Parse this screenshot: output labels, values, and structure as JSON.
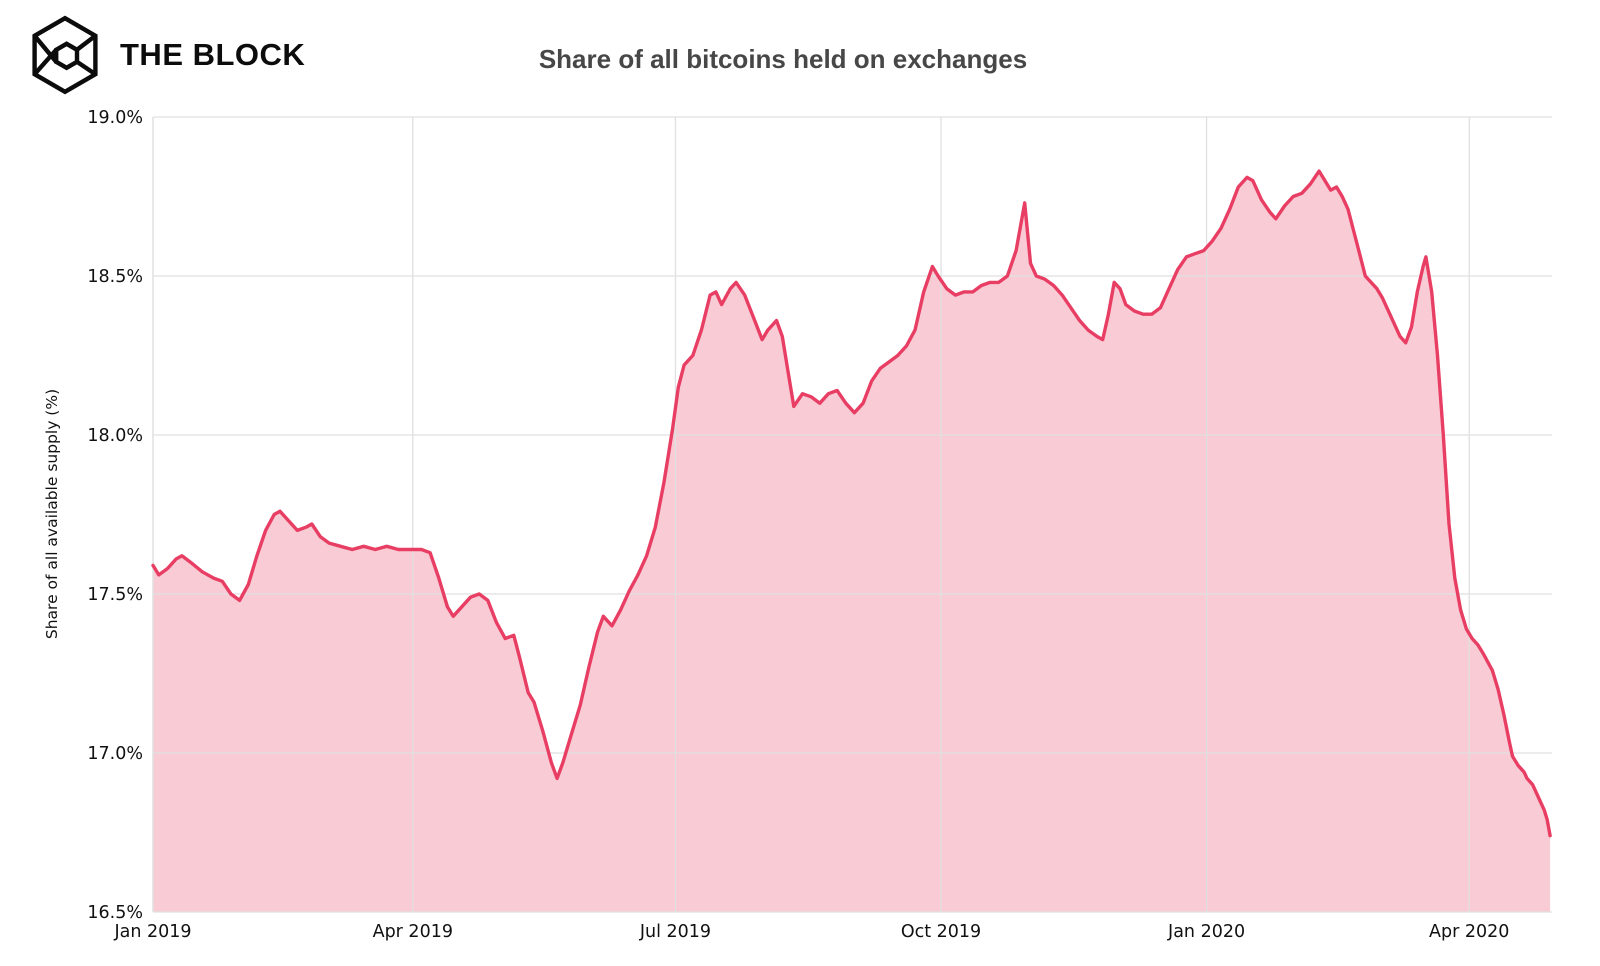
{
  "header": {
    "logo_text": "THE BLOCK"
  },
  "chart_data": {
    "type": "area",
    "title": "Share of all bitcoins held on exchanges",
    "ylabel": "Share of all available supply (%)",
    "xlabel": "",
    "ylim": [
      16.5,
      19.0
    ],
    "grid": true,
    "legend_position": "none",
    "colors": {
      "line": "#e83e64",
      "fill": "rgba(232,62,100,0.27)",
      "grid": "#e0e0e0",
      "axis_text": "#111111",
      "title": "#474747"
    },
    "y_ticks": [
      {
        "value": 19.0,
        "label": "19.0%"
      },
      {
        "value": 18.5,
        "label": "18.5%"
      },
      {
        "value": 18.0,
        "label": "18.0%"
      },
      {
        "value": 17.5,
        "label": "17.5%"
      },
      {
        "value": 17.0,
        "label": "17.0%"
      },
      {
        "value": 16.5,
        "label": "16.5%"
      }
    ],
    "x_ticks": [
      {
        "date": "2019-01-01",
        "label": "Jan 2019"
      },
      {
        "date": "2019-04-01",
        "label": "Apr 2019"
      },
      {
        "date": "2019-07-01",
        "label": "Jul 2019"
      },
      {
        "date": "2019-10-01",
        "label": "Oct 2019"
      },
      {
        "date": "2020-01-01",
        "label": "Jan 2020"
      },
      {
        "date": "2020-04-01",
        "label": "Apr 2020"
      }
    ],
    "series": [
      {
        "name": "Share of all bitcoins held on exchanges",
        "points": [
          [
            "2019-01-01",
            17.59
          ],
          [
            "2019-01-03",
            17.56
          ],
          [
            "2019-01-06",
            17.58
          ],
          [
            "2019-01-09",
            17.61
          ],
          [
            "2019-01-11",
            17.62
          ],
          [
            "2019-01-14",
            17.6
          ],
          [
            "2019-01-18",
            17.57
          ],
          [
            "2019-01-22",
            17.55
          ],
          [
            "2019-01-25",
            17.54
          ],
          [
            "2019-01-28",
            17.5
          ],
          [
            "2019-01-31",
            17.48
          ],
          [
            "2019-02-03",
            17.53
          ],
          [
            "2019-02-06",
            17.62
          ],
          [
            "2019-02-09",
            17.7
          ],
          [
            "2019-02-12",
            17.75
          ],
          [
            "2019-02-14",
            17.76
          ],
          [
            "2019-02-17",
            17.73
          ],
          [
            "2019-02-20",
            17.7
          ],
          [
            "2019-02-23",
            17.71
          ],
          [
            "2019-02-25",
            17.72
          ],
          [
            "2019-02-28",
            17.68
          ],
          [
            "2019-03-03",
            17.66
          ],
          [
            "2019-03-07",
            17.65
          ],
          [
            "2019-03-11",
            17.64
          ],
          [
            "2019-03-15",
            17.65
          ],
          [
            "2019-03-19",
            17.64
          ],
          [
            "2019-03-23",
            17.65
          ],
          [
            "2019-03-27",
            17.64
          ],
          [
            "2019-03-31",
            17.64
          ],
          [
            "2019-04-04",
            17.64
          ],
          [
            "2019-04-07",
            17.63
          ],
          [
            "2019-04-10",
            17.55
          ],
          [
            "2019-04-13",
            17.46
          ],
          [
            "2019-04-15",
            17.43
          ],
          [
            "2019-04-18",
            17.46
          ],
          [
            "2019-04-21",
            17.49
          ],
          [
            "2019-04-24",
            17.5
          ],
          [
            "2019-04-27",
            17.48
          ],
          [
            "2019-04-30",
            17.41
          ],
          [
            "2019-05-03",
            17.36
          ],
          [
            "2019-05-06",
            17.37
          ],
          [
            "2019-05-08",
            17.3
          ],
          [
            "2019-05-11",
            17.19
          ],
          [
            "2019-05-13",
            17.16
          ],
          [
            "2019-05-16",
            17.07
          ],
          [
            "2019-05-19",
            16.97
          ],
          [
            "2019-05-21",
            16.92
          ],
          [
            "2019-05-23",
            16.97
          ],
          [
            "2019-05-26",
            17.06
          ],
          [
            "2019-05-29",
            17.15
          ],
          [
            "2019-06-01",
            17.27
          ],
          [
            "2019-06-04",
            17.38
          ],
          [
            "2019-06-06",
            17.43
          ],
          [
            "2019-06-09",
            17.4
          ],
          [
            "2019-06-12",
            17.45
          ],
          [
            "2019-06-15",
            17.51
          ],
          [
            "2019-06-18",
            17.56
          ],
          [
            "2019-06-21",
            17.62
          ],
          [
            "2019-06-24",
            17.71
          ],
          [
            "2019-06-27",
            17.85
          ],
          [
            "2019-06-30",
            18.02
          ],
          [
            "2019-07-02",
            18.15
          ],
          [
            "2019-07-04",
            18.22
          ],
          [
            "2019-07-07",
            18.25
          ],
          [
            "2019-07-10",
            18.33
          ],
          [
            "2019-07-13",
            18.44
          ],
          [
            "2019-07-15",
            18.45
          ],
          [
            "2019-07-17",
            18.41
          ],
          [
            "2019-07-20",
            18.46
          ],
          [
            "2019-07-22",
            18.48
          ],
          [
            "2019-07-25",
            18.44
          ],
          [
            "2019-07-28",
            18.37
          ],
          [
            "2019-07-31",
            18.3
          ],
          [
            "2019-08-02",
            18.33
          ],
          [
            "2019-08-05",
            18.36
          ],
          [
            "2019-08-07",
            18.31
          ],
          [
            "2019-08-09",
            18.2
          ],
          [
            "2019-08-11",
            18.09
          ],
          [
            "2019-08-14",
            18.13
          ],
          [
            "2019-08-17",
            18.12
          ],
          [
            "2019-08-20",
            18.1
          ],
          [
            "2019-08-23",
            18.13
          ],
          [
            "2019-08-26",
            18.14
          ],
          [
            "2019-08-29",
            18.1
          ],
          [
            "2019-09-01",
            18.07
          ],
          [
            "2019-09-04",
            18.1
          ],
          [
            "2019-09-07",
            18.17
          ],
          [
            "2019-09-10",
            18.21
          ],
          [
            "2019-09-13",
            18.23
          ],
          [
            "2019-09-16",
            18.25
          ],
          [
            "2019-09-19",
            18.28
          ],
          [
            "2019-09-22",
            18.33
          ],
          [
            "2019-09-25",
            18.45
          ],
          [
            "2019-09-28",
            18.53
          ],
          [
            "2019-09-30",
            18.5
          ],
          [
            "2019-10-03",
            18.46
          ],
          [
            "2019-10-06",
            18.44
          ],
          [
            "2019-10-09",
            18.45
          ],
          [
            "2019-10-12",
            18.45
          ],
          [
            "2019-10-15",
            18.47
          ],
          [
            "2019-10-18",
            18.48
          ],
          [
            "2019-10-21",
            18.48
          ],
          [
            "2019-10-24",
            18.5
          ],
          [
            "2019-10-27",
            18.58
          ],
          [
            "2019-10-30",
            18.73
          ],
          [
            "2019-11-01",
            18.54
          ],
          [
            "2019-11-03",
            18.5
          ],
          [
            "2019-11-06",
            18.49
          ],
          [
            "2019-11-09",
            18.47
          ],
          [
            "2019-11-12",
            18.44
          ],
          [
            "2019-11-15",
            18.4
          ],
          [
            "2019-11-18",
            18.36
          ],
          [
            "2019-11-21",
            18.33
          ],
          [
            "2019-11-24",
            18.31
          ],
          [
            "2019-11-26",
            18.3
          ],
          [
            "2019-11-28",
            18.38
          ],
          [
            "2019-11-30",
            18.48
          ],
          [
            "2019-12-02",
            18.46
          ],
          [
            "2019-12-04",
            18.41
          ],
          [
            "2019-12-07",
            18.39
          ],
          [
            "2019-12-10",
            18.38
          ],
          [
            "2019-12-13",
            18.38
          ],
          [
            "2019-12-16",
            18.4
          ],
          [
            "2019-12-19",
            18.46
          ],
          [
            "2019-12-22",
            18.52
          ],
          [
            "2019-12-25",
            18.56
          ],
          [
            "2019-12-28",
            18.57
          ],
          [
            "2019-12-31",
            18.58
          ],
          [
            "2020-01-03",
            18.61
          ],
          [
            "2020-01-06",
            18.65
          ],
          [
            "2020-01-09",
            18.71
          ],
          [
            "2020-01-12",
            18.78
          ],
          [
            "2020-01-15",
            18.81
          ],
          [
            "2020-01-17",
            18.8
          ],
          [
            "2020-01-20",
            18.74
          ],
          [
            "2020-01-23",
            18.7
          ],
          [
            "2020-01-25",
            18.68
          ],
          [
            "2020-01-28",
            18.72
          ],
          [
            "2020-01-31",
            18.75
          ],
          [
            "2020-02-03",
            18.76
          ],
          [
            "2020-02-06",
            18.79
          ],
          [
            "2020-02-09",
            18.83
          ],
          [
            "2020-02-11",
            18.8
          ],
          [
            "2020-02-13",
            18.77
          ],
          [
            "2020-02-15",
            18.78
          ],
          [
            "2020-02-17",
            18.75
          ],
          [
            "2020-02-19",
            18.71
          ],
          [
            "2020-02-21",
            18.64
          ],
          [
            "2020-02-23",
            18.57
          ],
          [
            "2020-02-25",
            18.5
          ],
          [
            "2020-02-27",
            18.48
          ],
          [
            "2020-02-29",
            18.46
          ],
          [
            "2020-03-02",
            18.43
          ],
          [
            "2020-03-04",
            18.39
          ],
          [
            "2020-03-06",
            18.35
          ],
          [
            "2020-03-08",
            18.31
          ],
          [
            "2020-03-10",
            18.29
          ],
          [
            "2020-03-12",
            18.34
          ],
          [
            "2020-03-14",
            18.45
          ],
          [
            "2020-03-16",
            18.53
          ],
          [
            "2020-03-17",
            18.56
          ],
          [
            "2020-03-19",
            18.45
          ],
          [
            "2020-03-21",
            18.25
          ],
          [
            "2020-03-23",
            18.0
          ],
          [
            "2020-03-25",
            17.72
          ],
          [
            "2020-03-27",
            17.55
          ],
          [
            "2020-03-29",
            17.45
          ],
          [
            "2020-03-31",
            17.39
          ],
          [
            "2020-04-02",
            17.36
          ],
          [
            "2020-04-04",
            17.34
          ],
          [
            "2020-04-06",
            17.31
          ],
          [
            "2020-04-09",
            17.26
          ],
          [
            "2020-04-11",
            17.2
          ],
          [
            "2020-04-13",
            17.12
          ],
          [
            "2020-04-15",
            17.03
          ],
          [
            "2020-04-16",
            16.99
          ],
          [
            "2020-04-18",
            16.96
          ],
          [
            "2020-04-20",
            16.94
          ],
          [
            "2020-04-21",
            16.92
          ],
          [
            "2020-04-23",
            16.9
          ],
          [
            "2020-04-25",
            16.86
          ],
          [
            "2020-04-27",
            16.82
          ],
          [
            "2020-04-28",
            16.79
          ],
          [
            "2020-04-29",
            16.74
          ]
        ]
      }
    ]
  }
}
